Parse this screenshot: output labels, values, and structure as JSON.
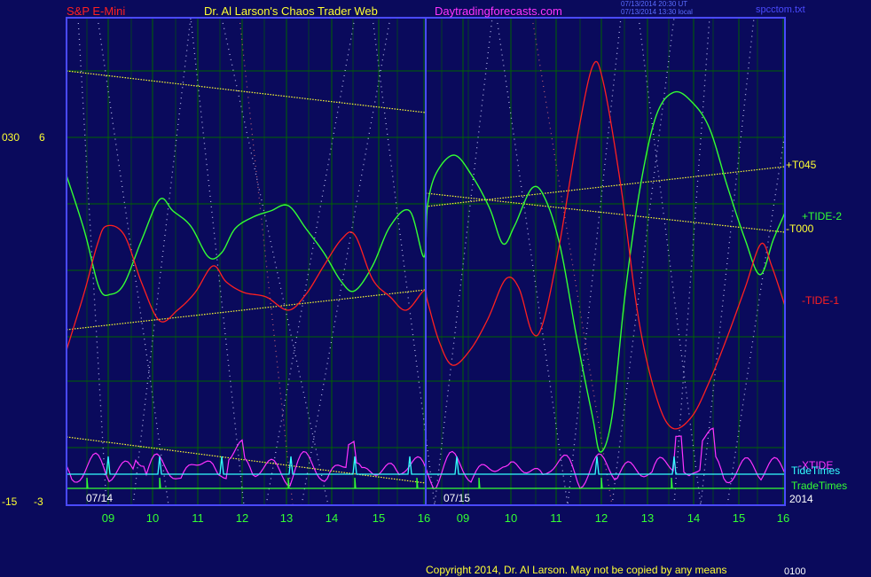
{
  "header": {
    "instrument": "S&P E-Mini",
    "author": "Dr. Al Larson's Chaos Trader Web",
    "site": "Daytradingforecasts.com",
    "stamp1": "07/13/2014 20:30 UT",
    "stamp2": "07/13/2014 13:30 local",
    "file": "spcctom.txt"
  },
  "left_labels": {
    "top_a": "030",
    "top_b": "6",
    "bot_a": "-15",
    "bot_b": "-3"
  },
  "right_labels": {
    "t045": "+T045",
    "tide2": "+TIDE-2",
    "t000": "-T000",
    "tide1": "-TIDE-1",
    "xtide": "-XTIDE",
    "tidetimes": "TideTimes",
    "tradetimes": "TradeTimes",
    "year": "2014"
  },
  "dates": {
    "d1": "07/14",
    "d2": "07/15"
  },
  "footer": {
    "copyright": "Copyright 2014, Dr. Al Larson. May not be copied by any means",
    "tail": "0100"
  },
  "colors": {
    "bg": "#0a0a5c",
    "frame": "#4a4aff",
    "grid": "#006400",
    "red": "#ff2020",
    "green": "#33ff33",
    "yellow": "#ffff33",
    "magenta": "#ff33ff",
    "cyan": "#33ffff",
    "white": "#ffffff"
  },
  "chart_data": {
    "type": "line",
    "x_ticks": [
      "09",
      "10",
      "11",
      "12",
      "13",
      "14",
      "15",
      "16",
      "09",
      "10",
      "11",
      "12",
      "13",
      "14",
      "15",
      "16"
    ],
    "series": [
      {
        "name": "+TIDE-2",
        "color": "green"
      },
      {
        "name": "-TIDE-1",
        "color": "red"
      },
      {
        "name": "-XTIDE",
        "color": "magenta"
      },
      {
        "name": "+T045",
        "color": "yellow"
      },
      {
        "name": "-T000",
        "color": "yellow"
      },
      {
        "name": "TideTimes",
        "color": "cyan"
      },
      {
        "name": "TradeTimes",
        "color": "green"
      }
    ],
    "grid": true
  }
}
